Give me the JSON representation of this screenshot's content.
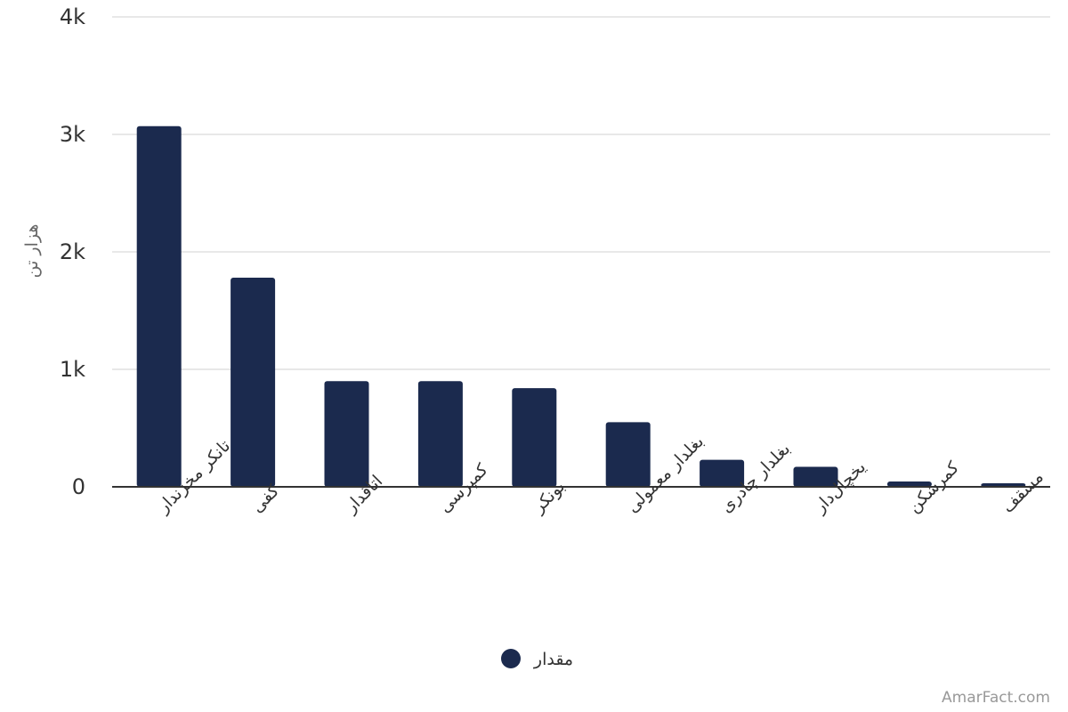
{
  "chart_data": {
    "type": "bar",
    "ylabel": "هزار تن",
    "xlabel": "",
    "categories": [
      "تانکر مخزندار",
      "کفی",
      "اتاقدار",
      "کمپرسی",
      "بونکر",
      "بغلدار معمولی",
      "بغلدار چادری",
      "یخچال‌دار",
      "کمرشکن",
      "مسقف"
    ],
    "series": [
      {
        "name": "مقدار",
        "color": "#1b2a4e",
        "values": [
          3070,
          1780,
          900,
          900,
          840,
          550,
          230,
          170,
          45,
          30
        ]
      }
    ],
    "ylim": [
      0,
      4000
    ],
    "yticks": [
      0,
      1000,
      2000,
      3000,
      4000
    ],
    "ytick_labels": [
      "0",
      "1k",
      "2k",
      "3k",
      "4k"
    ],
    "grid": true,
    "legend": "bottom-center"
  },
  "credit": "AmarFact.com"
}
